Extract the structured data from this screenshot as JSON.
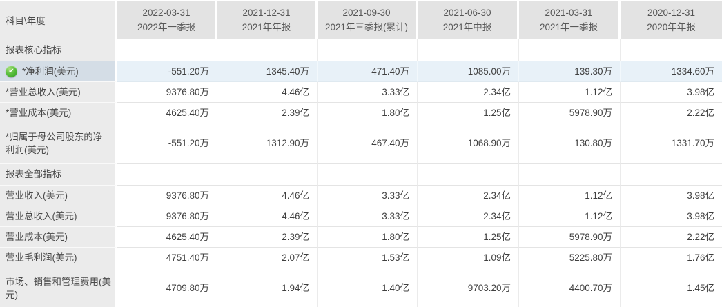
{
  "table": {
    "corner_label": "科目\\年度",
    "columns": [
      {
        "date": "2022-03-31",
        "period": "2022年一季报"
      },
      {
        "date": "2021-12-31",
        "period": "2021年年报"
      },
      {
        "date": "2021-09-30",
        "period": "2021年三季报(累计)"
      },
      {
        "date": "2021-06-30",
        "period": "2021年中报"
      },
      {
        "date": "2021-03-31",
        "period": "2021年一季报"
      },
      {
        "date": "2020-12-31",
        "period": "2020年年报"
      }
    ],
    "rows": [
      {
        "kind": "section",
        "label": "报表核心指标",
        "values": [
          "",
          "",
          "",
          "",
          "",
          ""
        ]
      },
      {
        "kind": "data",
        "highlight": true,
        "icon": "check-icon",
        "label": "*净利润(美元)",
        "values": [
          "-551.20万",
          "1345.40万",
          "471.40万",
          "1085.00万",
          "139.30万",
          "1334.60万"
        ]
      },
      {
        "kind": "data",
        "label": "*营业总收入(美元)",
        "values": [
          "9376.80万",
          "4.46亿",
          "3.33亿",
          "2.34亿",
          "1.12亿",
          "3.98亿"
        ]
      },
      {
        "kind": "data",
        "label": "*营业成本(美元)",
        "values": [
          "4625.40万",
          "2.39亿",
          "1.80亿",
          "1.25亿",
          "5978.90万",
          "2.22亿"
        ]
      },
      {
        "kind": "data",
        "tall": true,
        "label": "*归属于母公司股东的净利润(美元)",
        "values": [
          "-551.20万",
          "1312.90万",
          "467.40万",
          "1068.90万",
          "130.80万",
          "1331.70万"
        ]
      },
      {
        "kind": "section",
        "label": "报表全部指标",
        "values": [
          "",
          "",
          "",
          "",
          "",
          ""
        ]
      },
      {
        "kind": "data",
        "label": "营业收入(美元)",
        "values": [
          "9376.80万",
          "4.46亿",
          "3.33亿",
          "2.34亿",
          "1.12亿",
          "3.98亿"
        ]
      },
      {
        "kind": "data",
        "label": "营业总收入(美元)",
        "values": [
          "9376.80万",
          "4.46亿",
          "3.33亿",
          "2.34亿",
          "1.12亿",
          "3.98亿"
        ]
      },
      {
        "kind": "data",
        "label": "营业成本(美元)",
        "values": [
          "4625.40万",
          "2.39亿",
          "1.80亿",
          "1.25亿",
          "5978.90万",
          "2.22亿"
        ]
      },
      {
        "kind": "data",
        "label": "营业毛利润(美元)",
        "values": [
          "4751.40万",
          "2.07亿",
          "1.53亿",
          "1.09亿",
          "5225.80万",
          "1.76亿"
        ]
      },
      {
        "kind": "data",
        "tall": true,
        "label": "市场、销售和管理费用(美元)",
        "values": [
          "4709.80万",
          "1.94亿",
          "1.40亿",
          "9703.20万",
          "4400.70万",
          "1.45亿"
        ]
      }
    ]
  },
  "icons": {
    "check_glyph": "✔"
  },
  "colors": {
    "label_column_bg": "#ebebeb",
    "header_bg": "#e3e3e3",
    "highlight_row_bg": "#e8f1f8",
    "highlight_label_bg": "#d4dde6",
    "check_green": "#3aa022",
    "border": "#e4e4e4",
    "text": "#404040"
  }
}
